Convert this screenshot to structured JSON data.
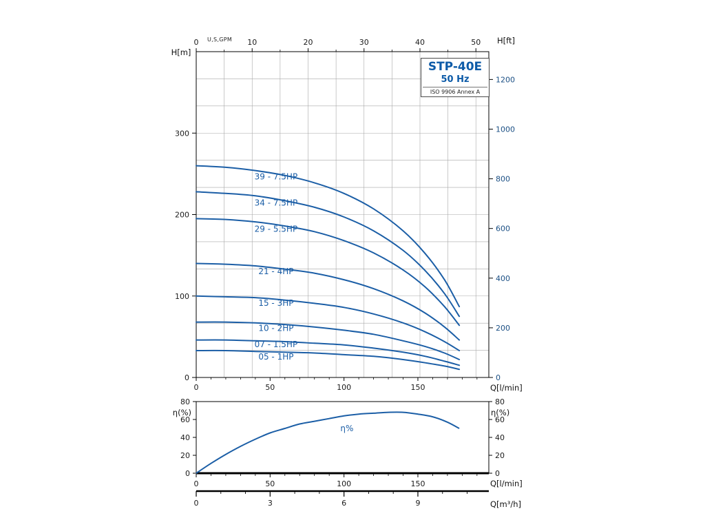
{
  "title_block": {
    "model": "STP-40E",
    "frequency": "50 Hz",
    "standard": "ISO 9906 Annex A"
  },
  "colors": {
    "curve": "#1b5ea6",
    "series_label": "#1b5ea6",
    "title": "#0d5ba8",
    "axis": "#000000",
    "grid": "#a8a8a8",
    "right_axis_text": "#1b4f84",
    "tick_text": "#1a1a1a"
  },
  "chart_data": [
    {
      "type": "line",
      "name": "head-flow-curves",
      "axes": {
        "top": {
          "label": "U,S,GPM",
          "min": 0,
          "max": 52.31,
          "ticks": [
            0,
            10,
            20,
            30,
            40,
            50
          ],
          "minor_step": 5
        },
        "bottom": {
          "label": "Q[l/min]",
          "min": 0,
          "max": 198,
          "ticks": [
            0,
            50,
            100,
            150
          ],
          "minor_step": 10
        },
        "left": {
          "label": "H[m]",
          "min": 0,
          "max": 400,
          "ticks": [
            0,
            100,
            200,
            300
          ]
        },
        "right": {
          "label": "H[ft]",
          "min": 0,
          "max": 1312,
          "ticks": [
            0,
            200,
            400,
            600,
            800,
            1000,
            1200
          ]
        }
      },
      "grid": {
        "vertical_every_gpm": 5,
        "horizontal_divisions": 12
      },
      "series": [
        {
          "name": "39 - 7.5HP",
          "label_at": [
            54,
            243
          ],
          "points": [
            [
              0,
              260
            ],
            [
              20,
              258
            ],
            [
              40,
              254
            ],
            [
              60,
              248
            ],
            [
              80,
              239
            ],
            [
              100,
              226
            ],
            [
              120,
              207
            ],
            [
              140,
              180
            ],
            [
              155,
              152
            ],
            [
              168,
              120
            ],
            [
              178,
              87
            ]
          ]
        },
        {
          "name": "34 - 7.5HP",
          "label_at": [
            54,
            211
          ],
          "points": [
            [
              0,
              228
            ],
            [
              20,
              226
            ],
            [
              40,
              223
            ],
            [
              60,
              217
            ],
            [
              80,
              209
            ],
            [
              100,
              197
            ],
            [
              120,
              180
            ],
            [
              140,
              156
            ],
            [
              155,
              131
            ],
            [
              168,
              103
            ],
            [
              178,
              75
            ]
          ]
        },
        {
          "name": "29 - 5.5HP",
          "label_at": [
            54,
            179
          ],
          "points": [
            [
              0,
              195
            ],
            [
              20,
              194
            ],
            [
              40,
              191
            ],
            [
              60,
              186
            ],
            [
              80,
              179
            ],
            [
              100,
              168
            ],
            [
              120,
              153
            ],
            [
              140,
              132
            ],
            [
              155,
              111
            ],
            [
              168,
              87
            ],
            [
              178,
              64
            ]
          ]
        },
        {
          "name": "21 - 4HP",
          "label_at": [
            54,
            127
          ],
          "points": [
            [
              0,
              140
            ],
            [
              20,
              139
            ],
            [
              40,
              137
            ],
            [
              60,
              133
            ],
            [
              80,
              128
            ],
            [
              100,
              120
            ],
            [
              120,
              109
            ],
            [
              140,
              94
            ],
            [
              155,
              79
            ],
            [
              168,
              62
            ],
            [
              178,
              46
            ]
          ]
        },
        {
          "name": "15 - 3HP",
          "label_at": [
            54,
            88
          ],
          "points": [
            [
              0,
              100
            ],
            [
              20,
              99
            ],
            [
              40,
              98
            ],
            [
              60,
              95
            ],
            [
              80,
              91
            ],
            [
              100,
              86
            ],
            [
              120,
              78
            ],
            [
              140,
              67
            ],
            [
              155,
              56
            ],
            [
              168,
              44
            ],
            [
              178,
              33
            ]
          ]
        },
        {
          "name": "10 - 2HP",
          "label_at": [
            54,
            57
          ],
          "points": [
            [
              0,
              68
            ],
            [
              20,
              68
            ],
            [
              40,
              67
            ],
            [
              60,
              65
            ],
            [
              80,
              62
            ],
            [
              100,
              58
            ],
            [
              120,
              53
            ],
            [
              140,
              45
            ],
            [
              155,
              38
            ],
            [
              168,
              30
            ],
            [
              178,
              22
            ]
          ]
        },
        {
          "name": "07 - 1.5HP",
          "label_at": [
            54,
            37
          ],
          "points": [
            [
              0,
              46
            ],
            [
              20,
              46
            ],
            [
              40,
              45
            ],
            [
              60,
              44
            ],
            [
              80,
              42
            ],
            [
              100,
              40
            ],
            [
              120,
              36
            ],
            [
              140,
              31
            ],
            [
              155,
              26
            ],
            [
              168,
              20
            ],
            [
              178,
              15
            ]
          ]
        },
        {
          "name": "05 - 1HP",
          "label_at": [
            54,
            22
          ],
          "points": [
            [
              0,
              33
            ],
            [
              20,
              33
            ],
            [
              40,
              32
            ],
            [
              60,
              31
            ],
            [
              80,
              30
            ],
            [
              100,
              28
            ],
            [
              120,
              26
            ],
            [
              140,
              22
            ],
            [
              155,
              18
            ],
            [
              168,
              14
            ],
            [
              178,
              10
            ]
          ]
        }
      ]
    },
    {
      "type": "line",
      "name": "efficiency-curve",
      "axes": {
        "bottom": {
          "label": "Q[l/min]",
          "min": 0,
          "max": 198,
          "ticks": [
            0,
            50,
            100,
            150
          ],
          "minor_step": 10
        },
        "left": {
          "label": "η(%)",
          "min": 0,
          "max": 80,
          "ticks": [
            0,
            20,
            40,
            60,
            80
          ]
        },
        "right": {
          "label": "η(%)",
          "min": 0,
          "max": 80,
          "ticks": [
            0,
            20,
            40,
            60,
            80
          ]
        }
      },
      "series": [
        {
          "name": "η%",
          "label_at": [
            102,
            47
          ],
          "points": [
            [
              0,
              0
            ],
            [
              10,
              11
            ],
            [
              20,
              21
            ],
            [
              30,
              30
            ],
            [
              40,
              38
            ],
            [
              50,
              45
            ],
            [
              60,
              50
            ],
            [
              70,
              55
            ],
            [
              80,
              58
            ],
            [
              90,
              61
            ],
            [
              100,
              64
            ],
            [
              110,
              66
            ],
            [
              120,
              67
            ],
            [
              130,
              68
            ],
            [
              140,
              68
            ],
            [
              150,
              66
            ],
            [
              160,
              63
            ],
            [
              170,
              57
            ],
            [
              178,
              50
            ]
          ]
        }
      ]
    }
  ],
  "m3h_axis": {
    "label": "Q[m³/h]",
    "min": 0,
    "max": 11.88,
    "ticks": [
      0,
      3,
      6,
      9
    ],
    "minor_step": 1
  }
}
